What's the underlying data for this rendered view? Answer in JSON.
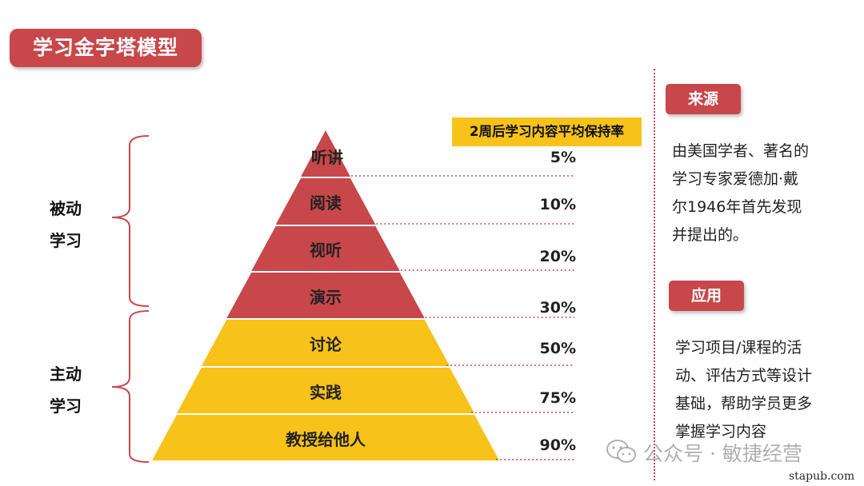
{
  "title": "学习金字塔模型",
  "groups": {
    "passive": [
      "被动",
      "学习"
    ],
    "active": [
      "主动",
      "学习"
    ]
  },
  "retention_header": "2周后学习内容平均保持率",
  "levels": [
    {
      "label": "听讲",
      "percent": "5%",
      "color": "#c8474a"
    },
    {
      "label": "阅读",
      "percent": "10%",
      "color": "#c8474a"
    },
    {
      "label": "视听",
      "percent": "20%",
      "color": "#c8474a"
    },
    {
      "label": "演示",
      "percent": "30%",
      "color": "#c8474a"
    },
    {
      "label": "讨论",
      "percent": "50%",
      "color": "#f7c21a"
    },
    {
      "label": "实践",
      "percent": "75%",
      "color": "#f7c21a"
    },
    {
      "label": "教授给他人",
      "percent": "90%",
      "color": "#f7c21a"
    }
  ],
  "source": {
    "tag": "来源",
    "lines": [
      "由美国学者、著名的",
      "学习专家爱德加·戴",
      "尔1946年首先发现",
      "并提出的。"
    ]
  },
  "application": {
    "tag": "应用",
    "lines": [
      "学习项目/课程的活",
      "动、评估方式等设计",
      "基础，帮助学员更多",
      "掌握学习内容"
    ]
  },
  "watermark": "公众号 · 敏捷经营",
  "site": "stapub.com",
  "colors": {
    "red": "#c8474a",
    "yellow": "#f7c21a"
  }
}
